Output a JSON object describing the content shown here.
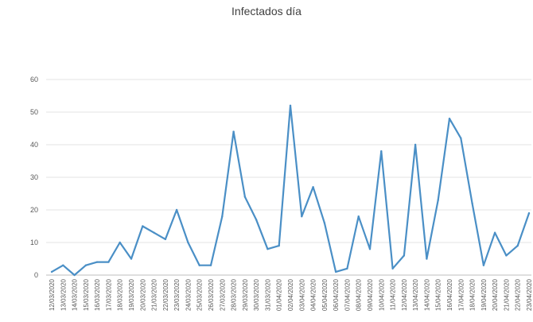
{
  "chart_data": {
    "type": "line",
    "title": "Infectados día",
    "xlabel": "",
    "ylabel": "",
    "ylim": [
      0,
      60
    ],
    "yticks": [
      0,
      10,
      20,
      30,
      40,
      50,
      60
    ],
    "grid": true,
    "line_color": "#4a8fc6",
    "categories": [
      "12/03/2020",
      "13/03/2020",
      "14/03/2020",
      "15/03/2020",
      "16/03/2020",
      "17/03/2020",
      "18/03/2020",
      "19/03/2020",
      "20/03/2020",
      "21/03/2020",
      "22/03/2020",
      "23/03/2020",
      "24/03/2020",
      "25/03/2020",
      "26/03/2020",
      "27/03/2020",
      "28/03/2020",
      "29/03/2020",
      "30/03/2020",
      "31/03/2020",
      "01/04/2020",
      "02/04/2020",
      "03/04/2020",
      "04/04/2020",
      "05/04/2020",
      "06/04/2020",
      "07/04/2020",
      "08/04/2020",
      "09/04/2020",
      "10/04/2020",
      "11/04/2020",
      "12/04/2020",
      "13/04/2020",
      "14/04/2020",
      "15/04/2020",
      "16/04/2020",
      "17/04/2020",
      "18/04/2020",
      "19/04/2020",
      "20/04/2020",
      "21/04/2020",
      "22/04/2020",
      "23/04/2020"
    ],
    "values": [
      1,
      3,
      0,
      3,
      4,
      4,
      10,
      5,
      15,
      13,
      11,
      20,
      10,
      3,
      3,
      18,
      44,
      24,
      17,
      8,
      9,
      52,
      18,
      27,
      16,
      1,
      2,
      18,
      8,
      38,
      2,
      6,
      40,
      5,
      23,
      48,
      42,
      22,
      3,
      13,
      6,
      9,
      19
    ]
  }
}
